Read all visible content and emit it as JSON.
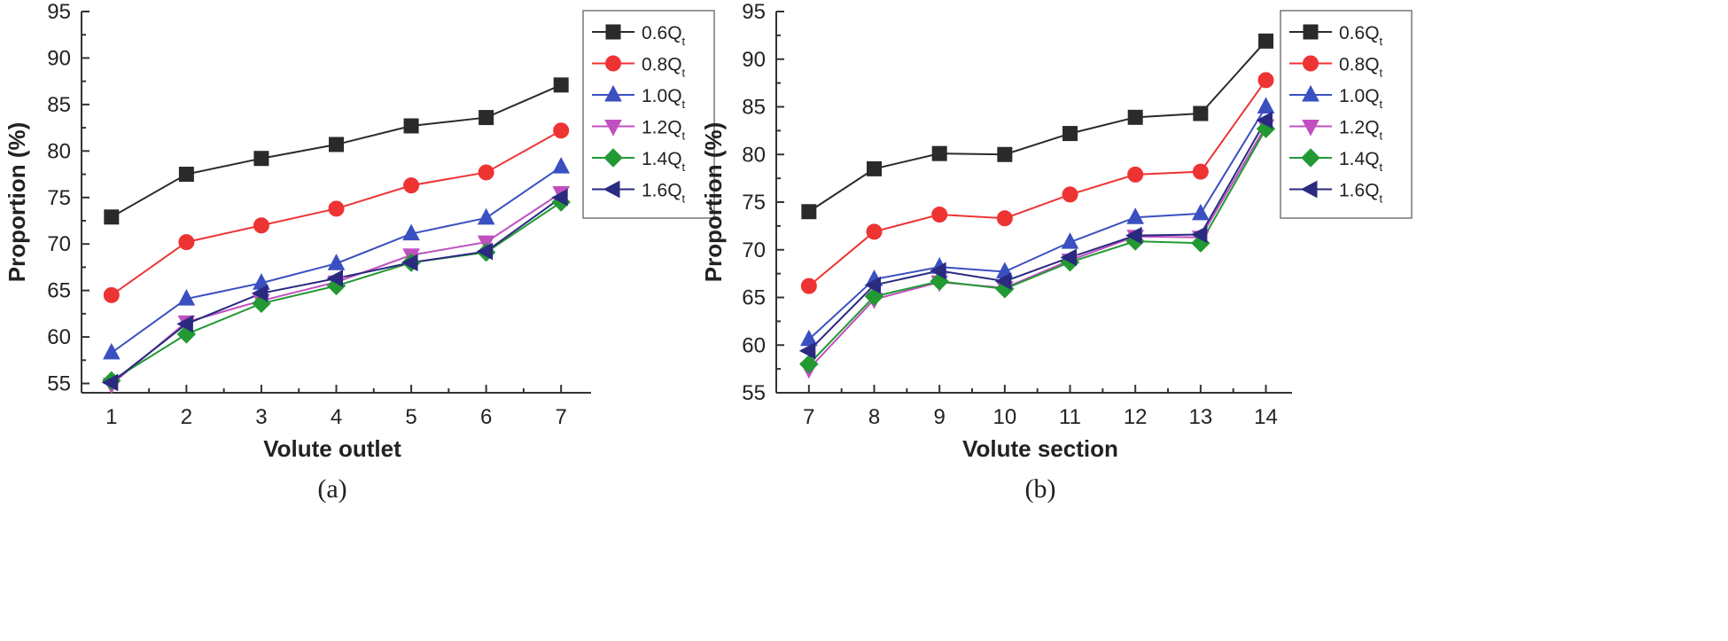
{
  "chart_data": [
    {
      "type": "line",
      "panel_label": "(a)",
      "title": "",
      "xlabel": "Volute outlet",
      "ylabel": "Proportion (%)",
      "xlim": [
        0.6,
        7.4
      ],
      "ylim": [
        54,
        95
      ],
      "yticks": [
        55,
        60,
        65,
        70,
        75,
        80,
        85,
        90,
        95
      ],
      "categories": [
        "1",
        "2",
        "3",
        "4",
        "5",
        "6",
        "7"
      ],
      "legend_position": "top-right",
      "series": [
        {
          "name": "0.6Q",
          "sub": "t",
          "color": "#2a2a2a",
          "marker": "square",
          "values": [
            72.9,
            77.5,
            79.2,
            80.7,
            82.7,
            83.6,
            87.1
          ]
        },
        {
          "name": "0.8Q",
          "sub": "t",
          "color": "#ee3333",
          "marker": "circle",
          "values": [
            64.5,
            70.2,
            72.0,
            73.8,
            76.3,
            77.7,
            82.2
          ]
        },
        {
          "name": "1.0Q",
          "sub": "t",
          "color": "#3a50c0",
          "marker": "triangle-up",
          "values": [
            58.3,
            64.1,
            65.8,
            67.9,
            71.1,
            72.8,
            78.3
          ]
        },
        {
          "name": "1.2Q",
          "sub": "t",
          "color": "#c050c0",
          "marker": "triangle-down",
          "values": [
            54.9,
            61.6,
            63.9,
            65.9,
            68.8,
            70.2,
            75.5
          ]
        },
        {
          "name": "1.4Q",
          "sub": "t",
          "color": "#229933",
          "marker": "diamond",
          "values": [
            55.3,
            60.3,
            63.6,
            65.5,
            68.0,
            69.1,
            74.5
          ]
        },
        {
          "name": "1.6Q",
          "sub": "t",
          "color": "#2a2a80",
          "marker": "triangle-left",
          "values": [
            55.1,
            61.4,
            64.7,
            66.3,
            68.0,
            69.2,
            75.0
          ]
        }
      ]
    },
    {
      "type": "line",
      "panel_label": "(b)",
      "title": "",
      "xlabel": "Volute section",
      "ylabel": "Proportion (%)",
      "xlim": [
        6.5,
        14.4
      ],
      "ylim": [
        55,
        95
      ],
      "yticks": [
        55,
        60,
        65,
        70,
        75,
        80,
        85,
        90,
        95
      ],
      "categories": [
        "7",
        "8",
        "9",
        "10",
        "11",
        "12",
        "13",
        "14"
      ],
      "legend_position": "top-right",
      "series": [
        {
          "name": "0.6Q",
          "sub": "t",
          "color": "#2a2a2a",
          "marker": "square",
          "values": [
            74.0,
            78.5,
            80.1,
            80.0,
            82.2,
            83.9,
            84.3,
            91.9
          ]
        },
        {
          "name": "0.8Q",
          "sub": "t",
          "color": "#ee3333",
          "marker": "circle",
          "values": [
            66.2,
            71.9,
            73.7,
            73.3,
            75.8,
            77.9,
            78.2,
            87.8
          ]
        },
        {
          "name": "1.0Q",
          "sub": "t",
          "color": "#3a50c0",
          "marker": "triangle-up",
          "values": [
            60.6,
            66.9,
            68.2,
            67.7,
            70.8,
            73.4,
            73.8,
            85.0
          ]
        },
        {
          "name": "1.2Q",
          "sub": "t",
          "color": "#c050c0",
          "marker": "triangle-down",
          "values": [
            57.5,
            64.8,
            66.6,
            66.0,
            68.9,
            71.4,
            71.3,
            83.0
          ]
        },
        {
          "name": "1.4Q",
          "sub": "t",
          "color": "#229933",
          "marker": "diamond",
          "values": [
            58.0,
            65.1,
            66.7,
            65.9,
            68.7,
            70.9,
            70.7,
            82.7
          ]
        },
        {
          "name": "1.6Q",
          "sub": "t",
          "color": "#2a2a80",
          "marker": "triangle-left",
          "values": [
            59.4,
            66.3,
            67.8,
            66.7,
            69.2,
            71.5,
            71.6,
            83.6
          ]
        }
      ]
    }
  ]
}
